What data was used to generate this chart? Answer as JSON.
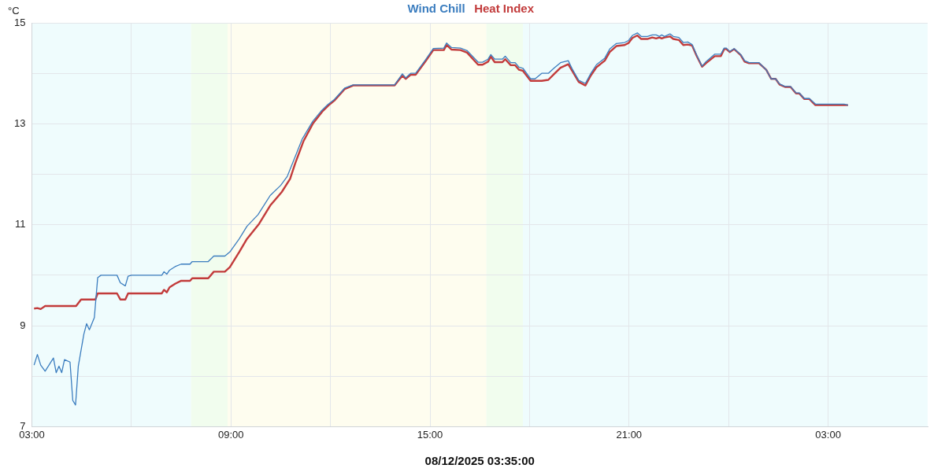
{
  "chart_data": {
    "type": "line",
    "xlabel": "08/12/2025 03:35:00",
    "ylabel": "°C",
    "legend": "top",
    "grid": true,
    "marker": "none",
    "line_style": "solid",
    "xlim": [
      "2025-08-11T03:00",
      "2025-08-12T06:00"
    ],
    "ylim": [
      7,
      15
    ],
    "xticks": [
      {
        "value": "2025-08-11T03:00",
        "label": "03:00"
      },
      {
        "value": "2025-08-11T06:00",
        "label": null
      },
      {
        "value": "2025-08-11T09:00",
        "label": "09:00"
      },
      {
        "value": "2025-08-11T12:00",
        "label": null
      },
      {
        "value": "2025-08-11T15:00",
        "label": "15:00"
      },
      {
        "value": "2025-08-11T18:00",
        "label": null
      },
      {
        "value": "2025-08-11T21:00",
        "label": "21:00"
      },
      {
        "value": "2025-08-12T00:00",
        "label": null
      },
      {
        "value": "2025-08-12T03:00",
        "label": "03:00"
      }
    ],
    "yticks": [
      7,
      {
        "value": 8,
        "label": null
      },
      9,
      {
        "value": 10,
        "label": null
      },
      11,
      {
        "value": 12,
        "label": null
      },
      13,
      {
        "value": 14,
        "label": null
      },
      15
    ],
    "bands": [
      {
        "axis": "x",
        "from": "2025-08-11T03:00",
        "to": "2025-08-11T07:48",
        "color": "#effcfd"
      },
      {
        "axis": "x",
        "from": "2025-08-11T07:48",
        "to": "2025-08-11T08:54",
        "color": "#f1fdee"
      },
      {
        "axis": "x",
        "from": "2025-08-11T08:54",
        "to": "2025-08-11T16:42",
        "color": "#fefdef"
      },
      {
        "axis": "x",
        "from": "2025-08-11T16:42",
        "to": "2025-08-11T17:48",
        "color": "#f1fdee"
      },
      {
        "axis": "x",
        "from": "2025-08-11T17:48",
        "to": "2025-08-12T06:00",
        "color": "#effcfd"
      }
    ],
    "series": [
      {
        "name": "Wind Chill",
        "color": "#3b7dbf",
        "x": [
          "2025-08-11T03:04",
          "2025-08-11T03:10",
          "2025-08-11T03:16",
          "2025-08-11T03:24",
          "2025-08-11T03:39",
          "2025-08-11T03:44",
          "2025-08-11T03:49",
          "2025-08-11T03:54",
          "2025-08-11T03:59",
          "2025-08-11T04:09",
          "2025-08-11T04:14",
          "2025-08-11T04:19",
          "2025-08-11T04:24",
          "2025-08-11T04:34",
          "2025-08-11T04:39",
          "2025-08-11T04:44",
          "2025-08-11T04:53",
          "2025-08-11T04:59",
          "2025-08-11T05:05",
          "2025-08-11T05:34",
          "2025-08-11T05:40",
          "2025-08-11T05:49",
          "2025-08-11T05:54",
          "2025-08-11T06:00",
          "2025-08-11T06:55",
          "2025-08-11T06:59",
          "2025-08-11T07:04",
          "2025-08-11T07:09",
          "2025-08-11T07:19",
          "2025-08-11T07:30",
          "2025-08-11T07:46",
          "2025-08-11T07:50",
          "2025-08-11T08:19",
          "2025-08-11T08:29",
          "2025-08-11T08:49",
          "2025-08-11T08:58",
          "2025-08-11T09:15",
          "2025-08-11T09:29",
          "2025-08-11T09:49",
          "2025-08-11T10:11",
          "2025-08-11T10:30",
          "2025-08-11T10:42",
          "2025-08-11T10:54",
          "2025-08-11T11:09",
          "2025-08-11T11:28",
          "2025-08-11T11:43",
          "2025-08-11T11:55",
          "2025-08-11T12:07",
          "2025-08-11T12:26",
          "2025-08-11T12:41",
          "2025-08-11T13:56",
          "2025-08-11T14:03",
          "2025-08-11T14:10",
          "2025-08-11T14:16",
          "2025-08-11T14:25",
          "2025-08-11T14:34",
          "2025-08-11T14:52",
          "2025-08-11T15:06",
          "2025-08-11T15:25",
          "2025-08-11T15:30",
          "2025-08-11T15:39",
          "2025-08-11T15:55",
          "2025-08-11T16:07",
          "2025-08-11T16:27",
          "2025-08-11T16:35",
          "2025-08-11T16:45",
          "2025-08-11T16:50",
          "2025-08-11T16:57",
          "2025-08-11T17:11",
          "2025-08-11T17:16",
          "2025-08-11T17:26",
          "2025-08-11T17:34",
          "2025-08-11T17:41",
          "2025-08-11T17:48",
          "2025-08-11T18:02",
          "2025-08-11T18:10",
          "2025-08-11T18:22",
          "2025-08-11T18:34",
          "2025-08-11T18:44",
          "2025-08-11T18:56",
          "2025-08-11T19:10",
          "2025-08-11T19:17",
          "2025-08-11T19:29",
          "2025-08-11T19:41",
          "2025-08-11T19:51",
          "2025-08-11T20:01",
          "2025-08-11T20:16",
          "2025-08-11T20:25",
          "2025-08-11T20:37",
          "2025-08-11T20:52",
          "2025-08-11T20:59",
          "2025-08-11T21:06",
          "2025-08-11T21:15",
          "2025-08-11T21:22",
          "2025-08-11T21:33",
          "2025-08-11T21:42",
          "2025-08-11T21:49",
          "2025-08-11T21:55",
          "2025-08-11T21:59",
          "2025-08-11T22:04",
          "2025-08-11T22:14",
          "2025-08-11T22:20",
          "2025-08-11T22:30",
          "2025-08-11T22:38",
          "2025-08-11T22:46",
          "2025-08-11T22:54",
          "2025-08-11T23:02",
          "2025-08-11T23:12",
          "2025-08-11T23:19",
          "2025-08-11T23:35",
          "2025-08-11T23:46",
          "2025-08-11T23:52",
          "2025-08-11T23:56",
          "2025-08-12T00:02",
          "2025-08-12T00:10",
          "2025-08-12T00:22",
          "2025-08-12T00:29",
          "2025-08-12T00:37",
          "2025-08-12T00:55",
          "2025-08-12T01:08",
          "2025-08-12T01:17",
          "2025-08-12T01:25",
          "2025-08-12T01:32",
          "2025-08-12T01:42",
          "2025-08-12T01:52",
          "2025-08-12T02:02",
          "2025-08-12T02:08",
          "2025-08-12T02:17",
          "2025-08-12T02:26",
          "2025-08-12T02:37",
          "2025-08-12T03:29",
          "2025-08-12T03:36"
        ],
        "values": [
          8.22,
          8.43,
          8.22,
          8.1,
          8.36,
          8.07,
          8.2,
          8.07,
          8.33,
          8.28,
          7.52,
          7.43,
          8.2,
          8.83,
          9.04,
          8.92,
          9.16,
          9.95,
          10.0,
          10.0,
          9.85,
          9.79,
          9.98,
          10.0,
          10.0,
          10.07,
          10.02,
          10.1,
          10.17,
          10.22,
          10.22,
          10.27,
          10.27,
          10.38,
          10.38,
          10.46,
          10.72,
          10.97,
          11.2,
          11.58,
          11.78,
          11.96,
          12.29,
          12.7,
          13.05,
          13.25,
          13.38,
          13.48,
          13.71,
          13.77,
          13.77,
          13.88,
          13.99,
          13.91,
          14.0,
          14.0,
          14.27,
          14.49,
          14.5,
          14.6,
          14.51,
          14.5,
          14.45,
          14.22,
          14.22,
          14.28,
          14.37,
          14.28,
          14.28,
          14.34,
          14.21,
          14.21,
          14.12,
          14.1,
          13.89,
          13.89,
          14.0,
          14.0,
          14.1,
          14.21,
          14.25,
          14.09,
          13.86,
          13.8,
          14.0,
          14.17,
          14.3,
          14.48,
          14.59,
          14.61,
          14.65,
          14.75,
          14.8,
          14.73,
          14.73,
          14.76,
          14.76,
          14.73,
          14.76,
          14.73,
          14.78,
          14.73,
          14.71,
          14.61,
          14.62,
          14.57,
          14.37,
          14.14,
          14.23,
          14.38,
          14.38,
          14.5,
          14.5,
          14.43,
          14.49,
          14.37,
          14.25,
          14.21,
          14.21,
          14.07,
          13.89,
          13.89,
          13.79,
          13.74,
          13.74,
          13.61,
          13.61,
          13.5,
          13.5,
          13.39,
          13.39,
          13.37
        ]
      },
      {
        "name": "Heat Index",
        "color": "#c23b3b",
        "x": [
          "2025-08-11T03:04",
          "2025-08-11T03:10",
          "2025-08-11T03:16",
          "2025-08-11T03:24",
          "2025-08-11T04:20",
          "2025-08-11T04:29",
          "2025-08-11T04:55",
          "2025-08-11T04:59",
          "2025-08-11T05:34",
          "2025-08-11T05:40",
          "2025-08-11T05:49",
          "2025-08-11T05:54",
          "2025-08-11T06:55",
          "2025-08-11T06:59",
          "2025-08-11T07:04",
          "2025-08-11T07:09",
          "2025-08-11T07:19",
          "2025-08-11T07:30",
          "2025-08-11T07:46",
          "2025-08-11T07:50",
          "2025-08-11T08:19",
          "2025-08-11T08:29",
          "2025-08-11T08:49",
          "2025-08-11T08:58",
          "2025-08-11T09:15",
          "2025-08-11T09:29",
          "2025-08-11T09:51",
          "2025-08-11T10:11",
          "2025-08-11T10:32",
          "2025-08-11T10:47",
          "2025-08-11T10:56",
          "2025-08-11T11:11",
          "2025-08-11T11:28",
          "2025-08-11T11:45",
          "2025-08-11T11:57",
          "2025-08-11T12:07",
          "2025-08-11T12:26",
          "2025-08-11T12:41",
          "2025-08-11T13:56",
          "2025-08-11T14:03",
          "2025-08-11T14:10",
          "2025-08-11T14:16",
          "2025-08-11T14:25",
          "2025-08-11T14:34",
          "2025-08-11T14:52",
          "2025-08-11T15:06",
          "2025-08-11T15:25",
          "2025-08-11T15:30",
          "2025-08-11T15:39",
          "2025-08-11T15:55",
          "2025-08-11T16:07",
          "2025-08-11T16:27",
          "2025-08-11T16:35",
          "2025-08-11T16:45",
          "2025-08-11T16:50",
          "2025-08-11T16:57",
          "2025-08-11T17:11",
          "2025-08-11T17:16",
          "2025-08-11T17:26",
          "2025-08-11T17:34",
          "2025-08-11T17:41",
          "2025-08-11T17:48",
          "2025-08-11T18:02",
          "2025-08-11T18:10",
          "2025-08-11T18:22",
          "2025-08-11T18:34",
          "2025-08-11T18:44",
          "2025-08-11T18:56",
          "2025-08-11T19:10",
          "2025-08-11T19:17",
          "2025-08-11T19:29",
          "2025-08-11T19:41",
          "2025-08-11T19:51",
          "2025-08-11T20:01",
          "2025-08-11T20:16",
          "2025-08-11T20:25",
          "2025-08-11T20:37",
          "2025-08-11T20:52",
          "2025-08-11T20:59",
          "2025-08-11T21:06",
          "2025-08-11T21:15",
          "2025-08-11T21:22",
          "2025-08-11T21:33",
          "2025-08-11T21:42",
          "2025-08-11T21:49",
          "2025-08-11T21:55",
          "2025-08-11T21:59",
          "2025-08-11T22:04",
          "2025-08-11T22:14",
          "2025-08-11T22:20",
          "2025-08-11T22:30",
          "2025-08-11T22:38",
          "2025-08-11T22:46",
          "2025-08-11T22:54",
          "2025-08-11T23:02",
          "2025-08-11T23:12",
          "2025-08-11T23:19",
          "2025-08-11T23:35",
          "2025-08-11T23:46",
          "2025-08-11T23:52",
          "2025-08-11T23:56",
          "2025-08-12T00:02",
          "2025-08-12T00:10",
          "2025-08-12T00:22",
          "2025-08-12T00:29",
          "2025-08-12T00:37",
          "2025-08-12T00:55",
          "2025-08-12T01:08",
          "2025-08-12T01:17",
          "2025-08-12T01:25",
          "2025-08-12T01:32",
          "2025-08-12T01:42",
          "2025-08-12T01:52",
          "2025-08-12T02:02",
          "2025-08-12T02:08",
          "2025-08-12T02:17",
          "2025-08-12T02:26",
          "2025-08-12T02:37",
          "2025-08-12T03:29",
          "2025-08-12T03:36"
        ],
        "values": [
          9.34,
          9.35,
          9.33,
          9.39,
          9.39,
          9.52,
          9.52,
          9.64,
          9.64,
          9.52,
          9.52,
          9.64,
          9.64,
          9.71,
          9.66,
          9.76,
          9.83,
          9.89,
          9.89,
          9.94,
          9.94,
          10.07,
          10.07,
          10.16,
          10.46,
          10.72,
          11.02,
          11.38,
          11.65,
          11.91,
          12.21,
          12.65,
          13.0,
          13.24,
          13.37,
          13.46,
          13.69,
          13.76,
          13.76,
          13.86,
          13.95,
          13.89,
          13.97,
          13.97,
          14.24,
          14.46,
          14.46,
          14.56,
          14.47,
          14.46,
          14.41,
          14.17,
          14.17,
          14.23,
          14.33,
          14.22,
          14.22,
          14.28,
          14.16,
          14.16,
          14.07,
          14.05,
          13.85,
          13.85,
          13.85,
          13.87,
          13.98,
          14.11,
          14.18,
          14.05,
          13.83,
          13.76,
          13.96,
          14.12,
          14.25,
          14.42,
          14.54,
          14.56,
          14.6,
          14.7,
          14.75,
          14.68,
          14.68,
          14.71,
          14.69,
          14.71,
          14.69,
          14.71,
          14.73,
          14.68,
          14.66,
          14.56,
          14.57,
          14.55,
          14.35,
          14.13,
          14.2,
          14.34,
          14.34,
          14.48,
          14.48,
          14.42,
          14.48,
          14.36,
          14.23,
          14.2,
          14.2,
          14.07,
          13.89,
          13.89,
          13.78,
          13.73,
          13.73,
          13.6,
          13.6,
          13.49,
          13.49,
          13.37,
          13.37,
          13.37
        ]
      }
    ]
  }
}
